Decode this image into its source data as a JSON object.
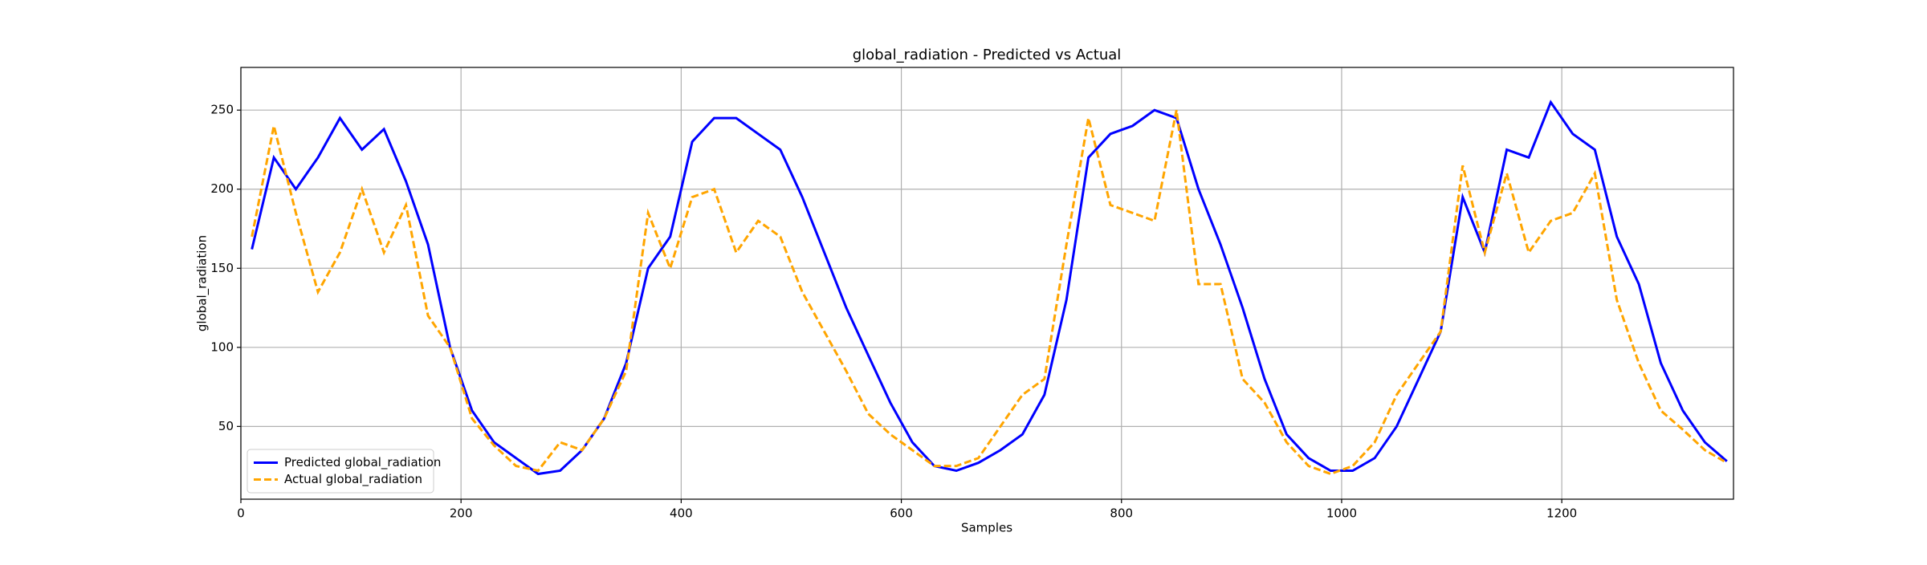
{
  "chart_data": {
    "type": "line",
    "title": "global_radiation - Predicted vs Actual",
    "xlabel": "Samples",
    "ylabel": "global_radiation",
    "x": [
      10,
      30,
      50,
      70,
      90,
      110,
      130,
      150,
      170,
      190,
      210,
      230,
      250,
      270,
      290,
      310,
      330,
      350,
      370,
      390,
      410,
      430,
      450,
      470,
      490,
      510,
      530,
      550,
      570,
      590,
      610,
      630,
      650,
      670,
      690,
      710,
      730,
      750,
      770,
      790,
      810,
      830,
      850,
      870,
      890,
      910,
      930,
      950,
      970,
      990,
      1010,
      1030,
      1050,
      1070,
      1090,
      1110,
      1130,
      1150,
      1170,
      1190,
      1210,
      1230,
      1250,
      1270,
      1290,
      1310,
      1330,
      1350
    ],
    "series": [
      {
        "name": "Predicted global_radiation",
        "color": "#0000ff",
        "linestyle": "solid",
        "values": [
          162,
          220,
          200,
          220,
          245,
          225,
          238,
          205,
          165,
          100,
          60,
          40,
          30,
          20,
          22,
          35,
          55,
          90,
          150,
          170,
          230,
          245,
          245,
          235,
          225,
          195,
          160,
          125,
          95,
          65,
          40,
          25,
          22,
          27,
          35,
          45,
          70,
          130,
          220,
          235,
          240,
          250,
          245,
          200,
          165,
          125,
          80,
          45,
          30,
          22,
          22,
          30,
          50,
          80,
          110,
          195,
          160,
          225,
          220,
          255,
          235,
          225,
          170,
          140,
          90,
          60,
          40,
          28
        ]
      },
      {
        "name": "Actual global_radiation",
        "color": "#ffa500",
        "linestyle": "dashed",
        "values": [
          170,
          240,
          185,
          135,
          160,
          200,
          160,
          190,
          120,
          100,
          55,
          38,
          25,
          22,
          40,
          35,
          55,
          85,
          185,
          150,
          195,
          200,
          160,
          180,
          170,
          135,
          110,
          85,
          58,
          45,
          35,
          25,
          25,
          30,
          50,
          70,
          80,
          165,
          245,
          190,
          185,
          180,
          250,
          140,
          140,
          80,
          65,
          40,
          25,
          20,
          25,
          40,
          70,
          90,
          110,
          215,
          160,
          210,
          160,
          180,
          185,
          210,
          130,
          90,
          60,
          48,
          35,
          27
        ]
      }
    ],
    "xlim": [
      0,
      1356
    ],
    "ylim": [
      4,
      277
    ],
    "xticks": [
      0,
      200,
      400,
      600,
      800,
      1000,
      1200
    ],
    "yticks": [
      50,
      100,
      150,
      200,
      250
    ],
    "grid": true,
    "legend": "lower left"
  }
}
